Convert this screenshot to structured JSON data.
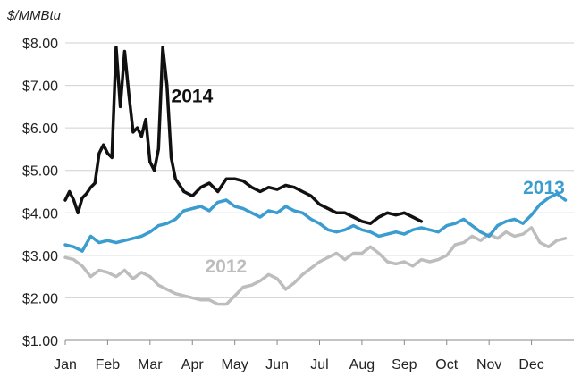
{
  "chart_data": {
    "type": "line",
    "unit_label": "$/MMBtu",
    "xlabel": "",
    "ylabel": "",
    "ylim": [
      1,
      8
    ],
    "y_ticks": [
      "$1.00",
      "$2.00",
      "$3.00",
      "$4.00",
      "$5.00",
      "$6.00",
      "$7.00",
      "$8.00"
    ],
    "y_tick_values": [
      1,
      2,
      3,
      4,
      5,
      6,
      7,
      8
    ],
    "x_ticks": [
      "Jan",
      "Feb",
      "Mar",
      "Apr",
      "May",
      "Jun",
      "Jul",
      "Aug",
      "Sep",
      "Oct",
      "Nov",
      "Dec"
    ],
    "grid": "horizontal",
    "legend": "inline labels",
    "series": [
      {
        "name": "2012",
        "color": "#bdbdbd",
        "x": [
          0,
          0.2,
          0.4,
          0.6,
          0.8,
          1.0,
          1.2,
          1.4,
          1.6,
          1.8,
          2.0,
          2.2,
          2.4,
          2.6,
          2.8,
          3.0,
          3.2,
          3.4,
          3.6,
          3.8,
          4.0,
          4.2,
          4.4,
          4.6,
          4.8,
          5.0,
          5.2,
          5.4,
          5.6,
          5.8,
          6.0,
          6.2,
          6.4,
          6.6,
          6.8,
          7.0,
          7.2,
          7.4,
          7.6,
          7.8,
          8.0,
          8.2,
          8.4,
          8.6,
          8.8,
          9.0,
          9.2,
          9.4,
          9.6,
          9.8,
          10.0,
          10.2,
          10.4,
          10.6,
          10.8,
          11.0,
          11.2,
          11.4,
          11.6,
          11.8
        ],
        "values": [
          2.95,
          2.9,
          2.75,
          2.5,
          2.65,
          2.6,
          2.5,
          2.65,
          2.45,
          2.6,
          2.5,
          2.3,
          2.2,
          2.1,
          2.05,
          2.0,
          1.95,
          1.95,
          1.85,
          1.85,
          2.05,
          2.25,
          2.3,
          2.4,
          2.55,
          2.45,
          2.2,
          2.35,
          2.55,
          2.7,
          2.85,
          2.95,
          3.05,
          2.9,
          3.05,
          3.05,
          3.2,
          3.05,
          2.85,
          2.8,
          2.85,
          2.75,
          2.9,
          2.85,
          2.9,
          3.0,
          3.25,
          3.3,
          3.45,
          3.35,
          3.5,
          3.4,
          3.55,
          3.45,
          3.5,
          3.65,
          3.3,
          3.2,
          3.35,
          3.4
        ]
      },
      {
        "name": "2013",
        "color": "#3a9ccf",
        "x": [
          0,
          0.2,
          0.4,
          0.6,
          0.8,
          1.0,
          1.2,
          1.4,
          1.6,
          1.8,
          2.0,
          2.2,
          2.4,
          2.6,
          2.8,
          3.0,
          3.2,
          3.4,
          3.6,
          3.8,
          4.0,
          4.2,
          4.4,
          4.6,
          4.8,
          5.0,
          5.2,
          5.4,
          5.6,
          5.8,
          6.0,
          6.2,
          6.4,
          6.6,
          6.8,
          7.0,
          7.2,
          7.4,
          7.6,
          7.8,
          8.0,
          8.2,
          8.4,
          8.6,
          8.8,
          9.0,
          9.2,
          9.4,
          9.6,
          9.8,
          10.0,
          10.2,
          10.4,
          10.6,
          10.8,
          11.0,
          11.2,
          11.4,
          11.6,
          11.8
        ],
        "values": [
          3.25,
          3.2,
          3.1,
          3.45,
          3.3,
          3.35,
          3.3,
          3.35,
          3.4,
          3.45,
          3.55,
          3.7,
          3.75,
          3.85,
          4.05,
          4.1,
          4.15,
          4.05,
          4.25,
          4.3,
          4.15,
          4.1,
          4.0,
          3.9,
          4.05,
          4.0,
          4.15,
          4.05,
          4.0,
          3.85,
          3.75,
          3.6,
          3.55,
          3.6,
          3.7,
          3.6,
          3.55,
          3.45,
          3.5,
          3.55,
          3.5,
          3.6,
          3.65,
          3.6,
          3.55,
          3.7,
          3.75,
          3.85,
          3.7,
          3.55,
          3.45,
          3.7,
          3.8,
          3.85,
          3.75,
          3.95,
          4.2,
          4.35,
          4.45,
          4.3
        ]
      },
      {
        "name": "2014",
        "color": "#111111",
        "x": [
          0,
          0.1,
          0.2,
          0.3,
          0.4,
          0.5,
          0.6,
          0.7,
          0.8,
          0.9,
          1.0,
          1.1,
          1.2,
          1.3,
          1.4,
          1.5,
          1.6,
          1.7,
          1.8,
          1.9,
          2.0,
          2.1,
          2.2,
          2.3,
          2.4,
          2.5,
          2.6,
          2.8,
          3.0,
          3.2,
          3.4,
          3.6,
          3.8,
          4.0,
          4.2,
          4.4,
          4.6,
          4.8,
          5.0,
          5.2,
          5.4,
          5.6,
          5.8,
          6.0,
          6.2,
          6.4,
          6.6,
          6.8,
          7.0,
          7.2,
          7.4,
          7.6,
          7.8,
          8.0,
          8.2,
          8.4
        ],
        "values": [
          4.3,
          4.5,
          4.3,
          4.0,
          4.35,
          4.45,
          4.6,
          4.7,
          5.4,
          5.6,
          5.4,
          5.3,
          7.9,
          6.5,
          7.8,
          6.8,
          5.9,
          6.0,
          5.8,
          6.2,
          5.2,
          5.0,
          5.5,
          7.9,
          7.0,
          5.3,
          4.8,
          4.5,
          4.4,
          4.6,
          4.7,
          4.5,
          4.8,
          4.8,
          4.75,
          4.6,
          4.5,
          4.6,
          4.55,
          4.65,
          4.6,
          4.5,
          4.4,
          4.2,
          4.1,
          4.0,
          4.0,
          3.9,
          3.8,
          3.75,
          3.9,
          4.0,
          3.95,
          4.0,
          3.9,
          3.8
        ]
      }
    ],
    "labels": [
      {
        "series": "2014",
        "text": "2014",
        "at": [
          2.5,
          6.6
        ]
      },
      {
        "series": "2013",
        "text": "2013",
        "at": [
          10.8,
          4.45
        ]
      },
      {
        "series": "2012",
        "text": "2012",
        "at": [
          3.3,
          2.6
        ]
      }
    ]
  }
}
